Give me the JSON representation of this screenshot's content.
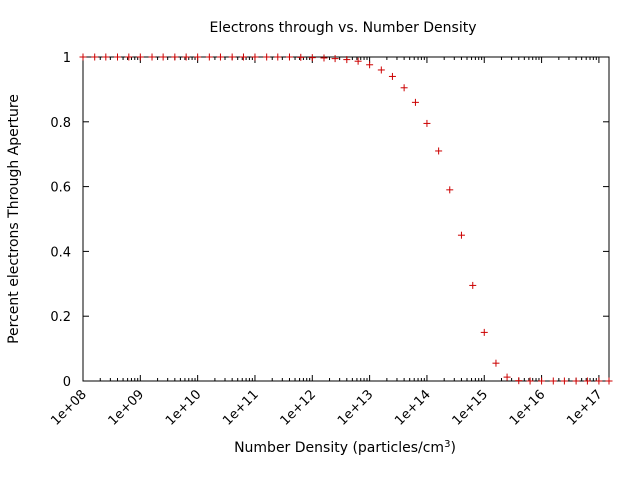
{
  "chart_data": {
    "type": "scatter",
    "title": "Electrons through vs. Number Density",
    "xlabel": "Number Density (particles/cm",
    "xlabel_sup": "3",
    "xlabel_close": ")",
    "ylabel": "Percent electrons Through Aperture",
    "x_scale": "log",
    "xlim": [
      100000000.0,
      1.5e+17
    ],
    "ylim": [
      0,
      1
    ],
    "x_ticks": [
      100000000.0,
      1000000000.0,
      10000000000.0,
      100000000000.0,
      1000000000000.0,
      10000000000000.0,
      100000000000000.0,
      1000000000000000.0,
      1e+16,
      1e+17
    ],
    "x_tick_labels": [
      "1e+08",
      "1e+09",
      "1e+10",
      "1e+11",
      "1e+12",
      "1e+13",
      "1e+14",
      "1e+15",
      "1e+16",
      "1e+17"
    ],
    "y_ticks": [
      0,
      0.2,
      0.4,
      0.6,
      0.8,
      1
    ],
    "y_tick_labels": [
      "0",
      "0.2",
      "0.4",
      "0.6",
      "0.8",
      "1"
    ],
    "grid": false,
    "marker": "+",
    "marker_color": "#cc0000",
    "series": [
      {
        "points": [
          [
            100000000.0,
            1.0
          ],
          [
            160000000.0,
            1.0
          ],
          [
            250000000.0,
            1.0
          ],
          [
            400000000.0,
            1.0
          ],
          [
            630000000.0,
            1.0
          ],
          [
            1000000000.0,
            1.0
          ],
          [
            1600000000.0,
            1.0
          ],
          [
            2500000000.0,
            1.0
          ],
          [
            4000000000.0,
            1.0
          ],
          [
            6300000000.0,
            1.0
          ],
          [
            10000000000.0,
            1.0
          ],
          [
            16000000000.0,
            1.0
          ],
          [
            25000000000.0,
            1.0
          ],
          [
            40000000000.0,
            1.0
          ],
          [
            63000000000.0,
            1.0
          ],
          [
            100000000000.0,
            1.0
          ],
          [
            160000000000.0,
            1.0
          ],
          [
            250000000000.0,
            1.0
          ],
          [
            400000000000.0,
            1.0
          ],
          [
            630000000000.0,
            0.999
          ],
          [
            1000000000000.0,
            0.998
          ],
          [
            1600000000000.0,
            0.997
          ],
          [
            2500000000000.0,
            0.995
          ],
          [
            4000000000000.0,
            0.992
          ],
          [
            6300000000000.0,
            0.987
          ],
          [
            10000000000000.0,
            0.976
          ],
          [
            16000000000000.0,
            0.96
          ],
          [
            25000000000000.0,
            0.94
          ],
          [
            40000000000000.0,
            0.905
          ],
          [
            63000000000000.0,
            0.86
          ],
          [
            100000000000000.0,
            0.795
          ],
          [
            160000000000000.0,
            0.71
          ],
          [
            250000000000000.0,
            0.59
          ],
          [
            400000000000000.0,
            0.45
          ],
          [
            630000000000000.0,
            0.295
          ],
          [
            1000000000000000.0,
            0.15
          ],
          [
            1600000000000000.0,
            0.055
          ],
          [
            2500000000000000.0,
            0.012
          ],
          [
            4000000000000000.0,
            0.001
          ],
          [
            6300000000000000.0,
            0.0
          ],
          [
            1e+16,
            0.0
          ],
          [
            1.6e+16,
            0.0
          ],
          [
            2.5e+16,
            0.0
          ],
          [
            4e+16,
            0.0
          ],
          [
            6.3e+16,
            0.0
          ],
          [
            1e+17,
            0.0
          ],
          [
            1.5e+17,
            0.0
          ]
        ]
      }
    ]
  }
}
